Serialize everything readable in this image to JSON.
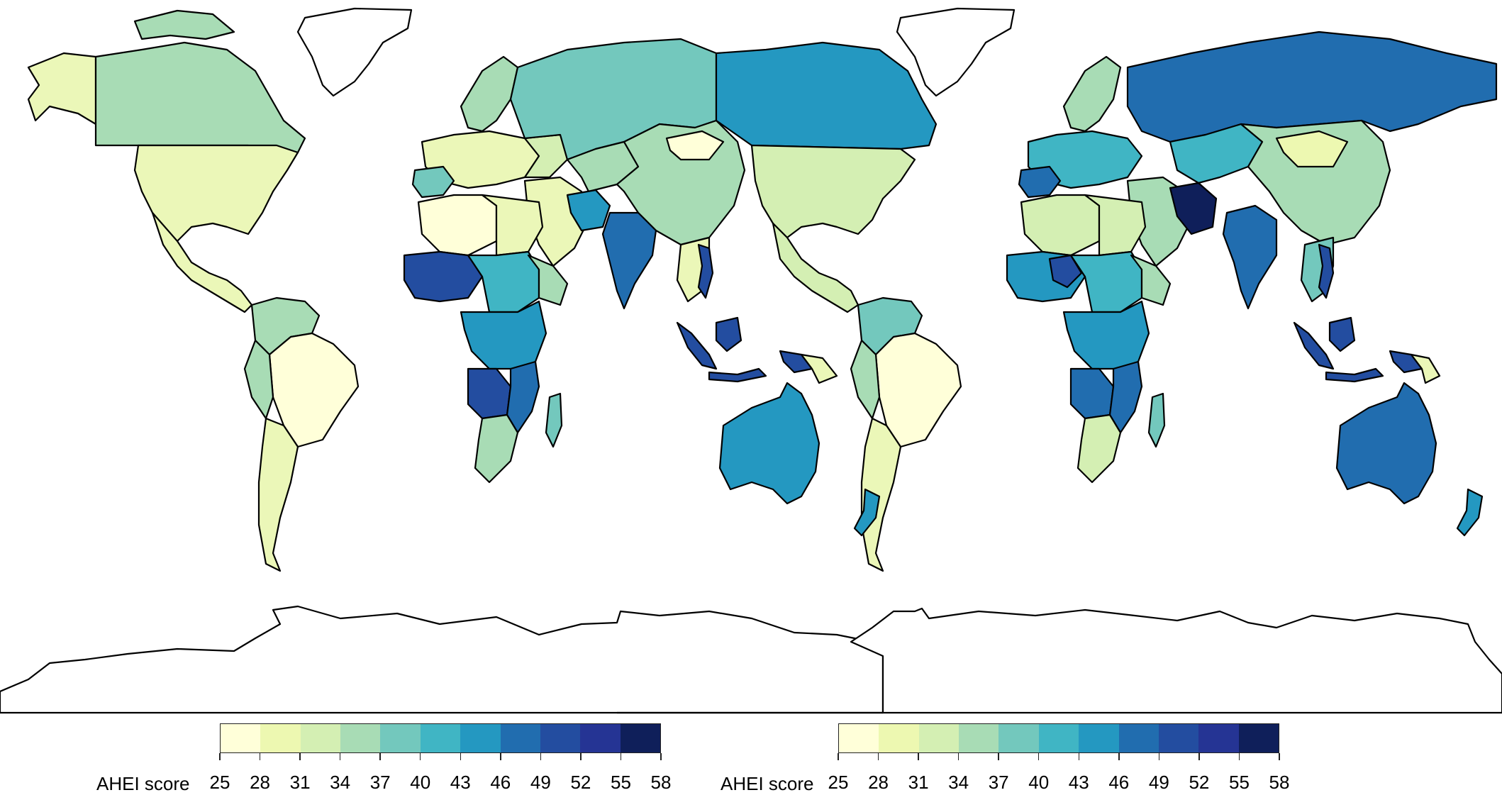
{
  "figure": {
    "panels": [
      {
        "id": "left-panel"
      },
      {
        "id": "right-panel"
      }
    ]
  },
  "legend": {
    "title": "AHEI score",
    "ticks": [
      "25",
      "28",
      "31",
      "34",
      "37",
      "40",
      "43",
      "46",
      "49",
      "52",
      "55",
      "58"
    ],
    "colors": [
      "#ffffd9",
      "#edf8b1",
      "#d4efb3",
      "#a8dcb5",
      "#73c8bd",
      "#40b5c4",
      "#2498c1",
      "#216daf",
      "#234da0",
      "#253494",
      "#0f1f5a"
    ]
  },
  "palette": {
    "land_outline": "#000000",
    "no_data": "#ffffff"
  }
}
